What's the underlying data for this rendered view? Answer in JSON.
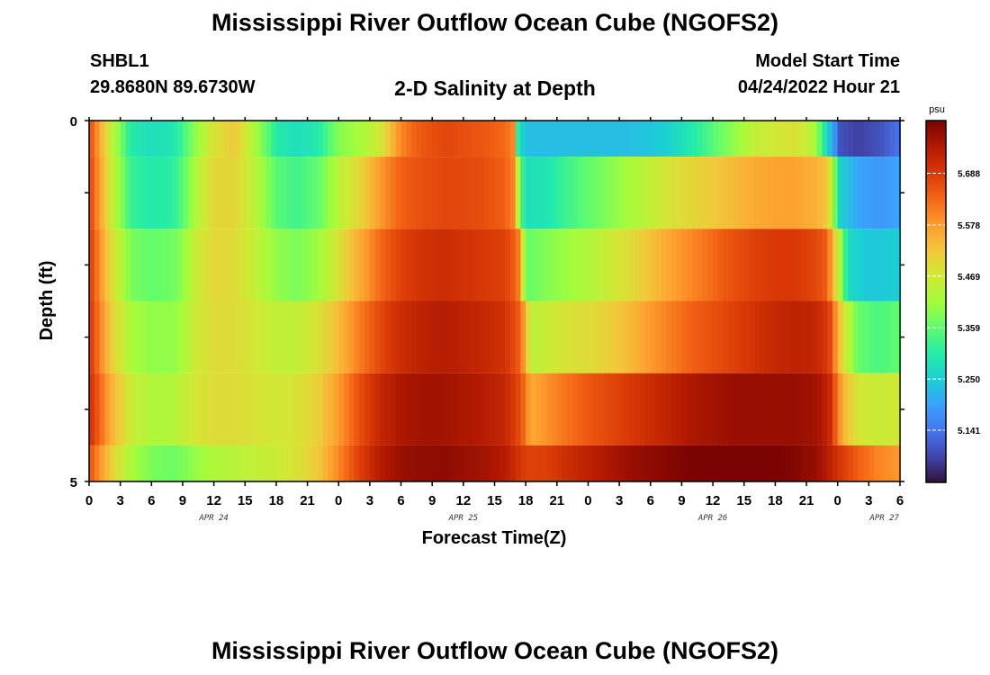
{
  "page": {
    "title": "Mississippi River Outflow Ocean Cube (NGOFS2)",
    "station_name": "SHBL1",
    "station_coords": "29.8680N  89.6730W",
    "subtitle": "2-D Salinity at Depth",
    "model_start_label": "Model Start Time",
    "model_start_value": "04/24/2022 Hour 21",
    "bottom_title": "Mississippi River Outflow Ocean Cube (NGOFS2)"
  },
  "chart_data": {
    "type": "heatmap",
    "title": "2-D Salinity at Depth",
    "xlabel": "Forecast Time(Z)",
    "ylabel": "Depth (ft)",
    "x_hours": [
      0,
      78
    ],
    "y_range": [
      0,
      5
    ],
    "x_tick_labels": [
      "0",
      "3",
      "6",
      "9",
      "12",
      "15",
      "18",
      "21",
      "0",
      "3",
      "6",
      "9",
      "12",
      "15",
      "18",
      "21",
      "0",
      "3",
      "6",
      "9",
      "12",
      "15",
      "18",
      "21",
      "0",
      "3",
      "6"
    ],
    "y_tick_labels": [
      "0",
      "5"
    ],
    "day_labels": [
      {
        "text": "APR 24",
        "hour": 12
      },
      {
        "text": "APR 25",
        "hour": 36
      },
      {
        "text": "APR 26",
        "hour": 60
      },
      {
        "text": "APR 27",
        "hour": 76.5
      }
    ],
    "colorbar": {
      "unit": "psu",
      "min": 5.03,
      "max": 5.8,
      "tick_values": [
        5.141,
        5.25,
        5.359,
        5.469,
        5.578,
        5.688
      ],
      "tick_labels": [
        "5.141",
        "5.250",
        "5.359",
        "5.469",
        "5.578",
        "5.688"
      ],
      "colors": [
        "#30123b",
        "#4145ab",
        "#4675ed",
        "#39a2fc",
        "#1bcfd4",
        "#24eca6",
        "#61fc6c",
        "#a4fc3b",
        "#d1e834",
        "#f3c63a",
        "#fe9b2d",
        "#f36315",
        "#d93806",
        "#b11901",
        "#7a0403"
      ]
    },
    "layers": [
      {
        "depth_ft": [
          0.0,
          0.5
        ],
        "hours": [
          0,
          2,
          4,
          6,
          8,
          9,
          10,
          12,
          14,
          16,
          18,
          20,
          22,
          24,
          26,
          28,
          30,
          31,
          32,
          33,
          34,
          35,
          36,
          38,
          40,
          40.8,
          41,
          41.3,
          42,
          44,
          46,
          48,
          50,
          52,
          54,
          56,
          58,
          60,
          62,
          64,
          66,
          68,
          69,
          70,
          71,
          71.7,
          72,
          74,
          76,
          78
        ],
        "values": [
          5.67,
          5.46,
          5.3,
          5.28,
          5.29,
          5.33,
          5.39,
          5.48,
          5.52,
          5.42,
          5.3,
          5.28,
          5.3,
          5.39,
          5.42,
          5.47,
          5.6,
          5.63,
          5.65,
          5.66,
          5.67,
          5.67,
          5.66,
          5.65,
          5.63,
          5.6,
          5.38,
          5.29,
          5.23,
          5.23,
          5.23,
          5.23,
          5.23,
          5.23,
          5.24,
          5.26,
          5.3,
          5.35,
          5.4,
          5.45,
          5.47,
          5.48,
          5.46,
          5.4,
          5.25,
          5.18,
          5.1,
          5.08,
          5.1,
          5.14
        ]
      },
      {
        "depth_ft": [
          0.5,
          1.5
        ],
        "hours": [
          0,
          2,
          4,
          6,
          8,
          9,
          10,
          12,
          14,
          16,
          18,
          20,
          22,
          24,
          26,
          28,
          30,
          32,
          34,
          36,
          38,
          40,
          40.8,
          41.5,
          42,
          44,
          46,
          48,
          50,
          52,
          54,
          56,
          58,
          60,
          62,
          64,
          66,
          68,
          70,
          71,
          71.8,
          72,
          74,
          76,
          78
        ],
        "values": [
          5.68,
          5.47,
          5.32,
          5.3,
          5.31,
          5.35,
          5.42,
          5.5,
          5.5,
          5.44,
          5.35,
          5.33,
          5.36,
          5.44,
          5.5,
          5.58,
          5.64,
          5.66,
          5.67,
          5.67,
          5.66,
          5.64,
          5.6,
          5.35,
          5.28,
          5.29,
          5.33,
          5.36,
          5.39,
          5.42,
          5.45,
          5.48,
          5.5,
          5.52,
          5.54,
          5.56,
          5.57,
          5.57,
          5.55,
          5.52,
          5.35,
          5.26,
          5.2,
          5.18,
          5.2
        ]
      },
      {
        "depth_ft": [
          1.5,
          2.5
        ],
        "hours": [
          0,
          2,
          4,
          6,
          8,
          9,
          10,
          12,
          14,
          16,
          18,
          20,
          22,
          24,
          26,
          28,
          30,
          32,
          34,
          36,
          38,
          40,
          41.2,
          42,
          44,
          46,
          48,
          50,
          52,
          54,
          56,
          58,
          60,
          62,
          64,
          66,
          68,
          70,
          71,
          72.2,
          73,
          75,
          78
        ],
        "values": [
          5.69,
          5.5,
          5.38,
          5.36,
          5.37,
          5.4,
          5.45,
          5.5,
          5.49,
          5.45,
          5.4,
          5.38,
          5.41,
          5.48,
          5.56,
          5.63,
          5.68,
          5.7,
          5.71,
          5.7,
          5.69,
          5.68,
          5.63,
          5.36,
          5.39,
          5.41,
          5.43,
          5.46,
          5.49,
          5.53,
          5.57,
          5.6,
          5.63,
          5.66,
          5.68,
          5.69,
          5.69,
          5.67,
          5.64,
          5.42,
          5.27,
          5.24,
          5.25
        ]
      },
      {
        "depth_ft": [
          2.5,
          3.5
        ],
        "hours": [
          0,
          2,
          4,
          6,
          8,
          9,
          10,
          12,
          14,
          16,
          18,
          20,
          22,
          24,
          26,
          28,
          30,
          32,
          34,
          36,
          38,
          40,
          41.5,
          42.5,
          44,
          46,
          48,
          50,
          52,
          54,
          56,
          58,
          60,
          62,
          64,
          66,
          68,
          70,
          71.2,
          72.5,
          74,
          76,
          78
        ],
        "values": [
          5.7,
          5.52,
          5.42,
          5.4,
          5.4,
          5.42,
          5.46,
          5.49,
          5.49,
          5.47,
          5.45,
          5.45,
          5.48,
          5.54,
          5.61,
          5.67,
          5.71,
          5.73,
          5.74,
          5.73,
          5.72,
          5.7,
          5.64,
          5.44,
          5.46,
          5.48,
          5.49,
          5.51,
          5.54,
          5.58,
          5.61,
          5.64,
          5.66,
          5.68,
          5.7,
          5.72,
          5.73,
          5.72,
          5.68,
          5.48,
          5.36,
          5.34,
          5.36
        ]
      },
      {
        "depth_ft": [
          3.5,
          4.5
        ],
        "hours": [
          0,
          2,
          4,
          6,
          8,
          9,
          10,
          12,
          14,
          16,
          18,
          20,
          22,
          24,
          26,
          28,
          30,
          32,
          34,
          36,
          38,
          40,
          41.5,
          42.5,
          44,
          46,
          48,
          50,
          52,
          54,
          56,
          58,
          60,
          62,
          64,
          66,
          68,
          70,
          71.2,
          72.5,
          74,
          76,
          78
        ],
        "values": [
          5.71,
          5.56,
          5.46,
          5.43,
          5.43,
          5.45,
          5.47,
          5.49,
          5.49,
          5.48,
          5.47,
          5.48,
          5.51,
          5.58,
          5.66,
          5.72,
          5.75,
          5.76,
          5.76,
          5.75,
          5.74,
          5.72,
          5.66,
          5.56,
          5.59,
          5.62,
          5.65,
          5.67,
          5.69,
          5.71,
          5.73,
          5.75,
          5.76,
          5.77,
          5.77,
          5.77,
          5.77,
          5.76,
          5.72,
          5.55,
          5.47,
          5.46,
          5.47
        ]
      },
      {
        "depth_ft": [
          4.5,
          5.0
        ],
        "hours": [
          0,
          2,
          4,
          6,
          8,
          9,
          10,
          12,
          14,
          16,
          18,
          20,
          22,
          24,
          26,
          28,
          30,
          32,
          34,
          36,
          38,
          40,
          42,
          44,
          46,
          48,
          50,
          52,
          54,
          56,
          58,
          60,
          62,
          64,
          66,
          68,
          70,
          71,
          72,
          74,
          76,
          78
        ],
        "values": [
          5.66,
          5.52,
          5.42,
          5.38,
          5.37,
          5.38,
          5.4,
          5.43,
          5.44,
          5.45,
          5.46,
          5.48,
          5.52,
          5.6,
          5.68,
          5.74,
          5.77,
          5.78,
          5.78,
          5.77,
          5.76,
          5.74,
          5.68,
          5.68,
          5.71,
          5.73,
          5.75,
          5.77,
          5.78,
          5.79,
          5.8,
          5.8,
          5.8,
          5.8,
          5.8,
          5.79,
          5.77,
          5.74,
          5.7,
          5.64,
          5.6,
          5.58
        ]
      }
    ]
  }
}
